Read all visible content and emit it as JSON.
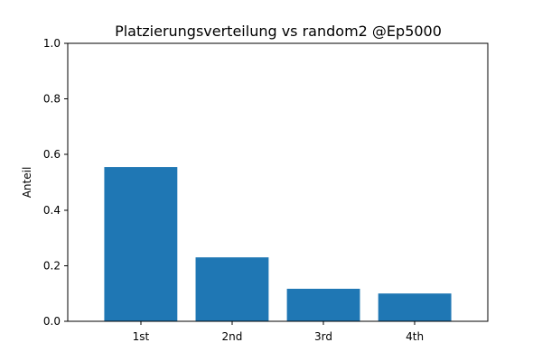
{
  "chart_data": {
    "type": "bar",
    "title": "Platzierungsverteilung vs random2 @Ep5000",
    "xlabel": "",
    "ylabel": "Anteil",
    "categories": [
      "1st",
      "2nd",
      "3rd",
      "4th"
    ],
    "values": [
      0.555,
      0.23,
      0.117,
      0.1
    ],
    "ylim": [
      0,
      1.0
    ],
    "yticks": [
      "0.0",
      "0.2",
      "0.4",
      "0.6",
      "0.8",
      "1.0"
    ],
    "bar_color": "#1f77b4",
    "grid": false,
    "legend": "none"
  }
}
